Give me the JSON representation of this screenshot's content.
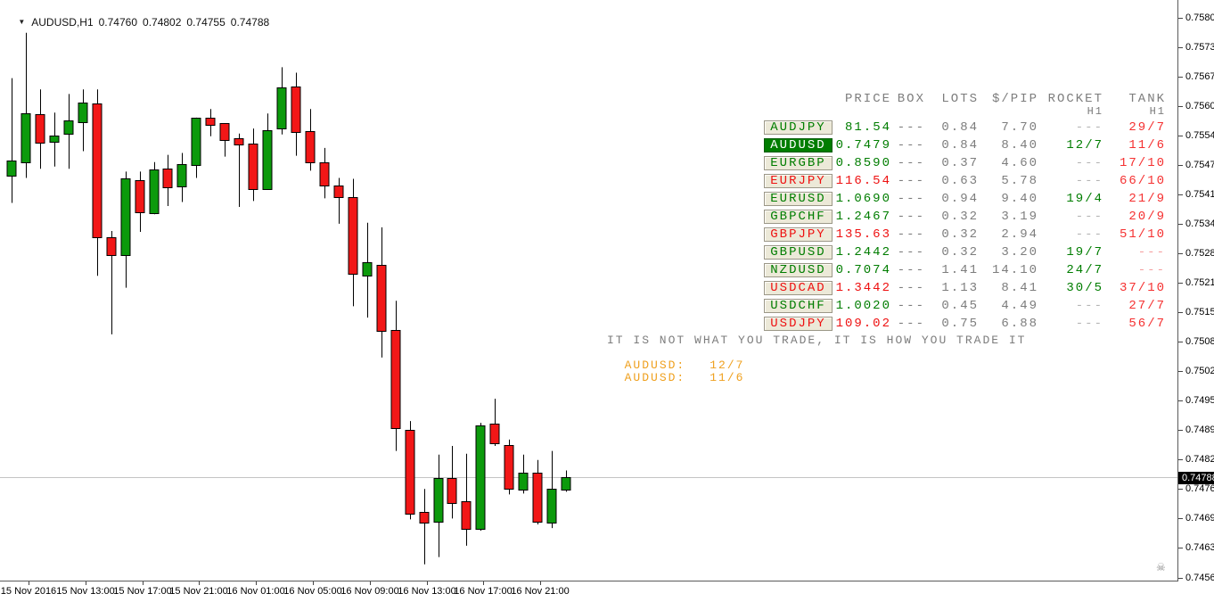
{
  "window": {
    "symbol_title": "AUDUSD,H1",
    "ohlc": {
      "open": "0.74760",
      "high": "0.74802",
      "low": "0.74755",
      "close": "0.74788"
    }
  },
  "icons": {
    "dropdown": "▼",
    "watermark": "☠"
  },
  "colors": {
    "bull": "#0c9a0c",
    "bear": "#f21717",
    "outline": "#000000",
    "price_line": "#c4c4c4",
    "axis_text": "#000000",
    "header_gray": "#7d7d7d",
    "dash_gray": "#b4b4b4",
    "green_text": "#007d00",
    "red_text": "#ee1111",
    "tank_red": "#f53030",
    "tank_dash": "#f5a0a0",
    "signal_orange": "#efa01e",
    "chip_face": "#ece9d8",
    "chip_selected_bg": "#007d00",
    "chip_selected_text": "#ffffff",
    "separator": "#5a5a5a"
  },
  "panel": {
    "columns": [
      "PRICE",
      "BOX",
      "LOTS",
      "$/PIP",
      "ROCKET",
      "TANK"
    ],
    "subheaders": {
      "rocket": "H1",
      "tank": "H1"
    },
    "rows": [
      {
        "pair": "AUDJPY",
        "trend": "g",
        "selected": false,
        "price": "81.54",
        "box": "---",
        "lots": "0.84",
        "pip": "7.70",
        "rocket": "---",
        "tank": "29/7"
      },
      {
        "pair": "AUDUSD",
        "trend": "g",
        "selected": true,
        "price": "0.7479",
        "box": "---",
        "lots": "0.84",
        "pip": "8.40",
        "rocket": "12/7",
        "tank": "11/6"
      },
      {
        "pair": "EURGBP",
        "trend": "g",
        "selected": false,
        "price": "0.8590",
        "box": "---",
        "lots": "0.37",
        "pip": "4.60",
        "rocket": "---",
        "tank": "17/10"
      },
      {
        "pair": "EURJPY",
        "trend": "r",
        "selected": false,
        "price": "116.54",
        "box": "---",
        "lots": "0.63",
        "pip": "5.78",
        "rocket": "---",
        "tank": "66/10"
      },
      {
        "pair": "EURUSD",
        "trend": "g",
        "selected": false,
        "price": "1.0690",
        "box": "---",
        "lots": "0.94",
        "pip": "9.40",
        "rocket": "19/4",
        "tank": "21/9"
      },
      {
        "pair": "GBPCHF",
        "trend": "g",
        "selected": false,
        "price": "1.2467",
        "box": "---",
        "lots": "0.32",
        "pip": "3.19",
        "rocket": "---",
        "tank": "20/9"
      },
      {
        "pair": "GBPJPY",
        "trend": "r",
        "selected": false,
        "price": "135.63",
        "box": "---",
        "lots": "0.32",
        "pip": "2.94",
        "rocket": "---",
        "tank": "51/10"
      },
      {
        "pair": "GBPUSD",
        "trend": "g",
        "selected": false,
        "price": "1.2442",
        "box": "---",
        "lots": "0.32",
        "pip": "3.20",
        "rocket": "19/7",
        "tank": "---"
      },
      {
        "pair": "NZDUSD",
        "trend": "g",
        "selected": false,
        "price": "0.7074",
        "box": "---",
        "lots": "1.41",
        "pip": "14.10",
        "rocket": "24/7",
        "tank": "---"
      },
      {
        "pair": "USDCAD",
        "trend": "r",
        "selected": false,
        "price": "1.3442",
        "box": "---",
        "lots": "1.13",
        "pip": "8.41",
        "rocket": "30/5",
        "tank": "37/10"
      },
      {
        "pair": "USDCHF",
        "trend": "g",
        "selected": false,
        "price": "1.0020",
        "box": "---",
        "lots": "0.45",
        "pip": "4.49",
        "rocket": "---",
        "tank": "27/7"
      },
      {
        "pair": "USDJPY",
        "trend": "r",
        "selected": false,
        "price": "109.02",
        "box": "---",
        "lots": "0.75",
        "pip": "6.88",
        "rocket": "---",
        "tank": "56/7"
      }
    ],
    "motto": "IT IS NOT WHAT YOU TRADE, IT IS HOW YOU TRADE IT",
    "signals": [
      {
        "label": "AUDUSD:",
        "value": "12/7"
      },
      {
        "label": "AUDUSD:",
        "value": "11/6"
      }
    ]
  },
  "chart_data": {
    "type": "candlestick",
    "symbol": "AUDUSD",
    "timeframe": "H1",
    "price_axis": {
      "min": 0.74565,
      "max": 0.758,
      "tick_step": 0.00065,
      "labels": [
        "0.75800",
        "0.75735",
        "0.75670",
        "0.75605",
        "0.75540",
        "0.75475",
        "0.75410",
        "0.75345",
        "0.75280",
        "0.75215",
        "0.75150",
        "0.75085",
        "0.75020",
        "0.74955",
        "0.74890",
        "0.74825",
        "0.74760",
        "0.74695",
        "0.74630",
        "0.74565"
      ],
      "current_price": "0.74788"
    },
    "time_axis": {
      "ticks": [
        {
          "index": 1,
          "label": "15 Nov 2016"
        },
        {
          "index": 5,
          "label": "15 Nov 13:00"
        },
        {
          "index": 9,
          "label": "15 Nov 17:00"
        },
        {
          "index": 13,
          "label": "15 Nov 21:00"
        },
        {
          "index": 17,
          "label": "16 Nov 01:00"
        },
        {
          "index": 21,
          "label": "16 Nov 05:00"
        },
        {
          "index": 25,
          "label": "16 Nov 09:00"
        },
        {
          "index": 29,
          "label": "16 Nov 13:00"
        },
        {
          "index": 33,
          "label": "16 Nov 17:00"
        },
        {
          "index": 37,
          "label": "16 Nov 21:00"
        }
      ]
    },
    "candles": [
      {
        "t": "15 Nov 08:00",
        "o": 0.75451,
        "h": 0.75667,
        "l": 0.75392,
        "c": 0.75486
      },
      {
        "t": "15 Nov 09:00",
        "o": 0.75482,
        "h": 0.75767,
        "l": 0.75447,
        "c": 0.75589
      },
      {
        "t": "15 Nov 10:00",
        "o": 0.75587,
        "h": 0.75642,
        "l": 0.75467,
        "c": 0.75525
      },
      {
        "t": "15 Nov 11:00",
        "o": 0.75527,
        "h": 0.75591,
        "l": 0.75472,
        "c": 0.75541
      },
      {
        "t": "15 Nov 12:00",
        "o": 0.75545,
        "h": 0.75632,
        "l": 0.75467,
        "c": 0.75574
      },
      {
        "t": "15 Nov 13:00",
        "o": 0.7557,
        "h": 0.75642,
        "l": 0.75506,
        "c": 0.75613
      },
      {
        "t": "15 Nov 14:00",
        "o": 0.75611,
        "h": 0.75642,
        "l": 0.75231,
        "c": 0.75316
      },
      {
        "t": "15 Nov 15:00",
        "o": 0.75316,
        "h": 0.7533,
        "l": 0.75102,
        "c": 0.75277
      },
      {
        "t": "15 Nov 16:00",
        "o": 0.75277,
        "h": 0.75461,
        "l": 0.75205,
        "c": 0.75447
      },
      {
        "t": "15 Nov 17:00",
        "o": 0.75443,
        "h": 0.75461,
        "l": 0.75328,
        "c": 0.75371
      },
      {
        "t": "15 Nov 18:00",
        "o": 0.75369,
        "h": 0.75482,
        "l": 0.75367,
        "c": 0.75465
      },
      {
        "t": "15 Nov 19:00",
        "o": 0.75467,
        "h": 0.75498,
        "l": 0.75385,
        "c": 0.75426
      },
      {
        "t": "15 Nov 20:00",
        "o": 0.75428,
        "h": 0.75502,
        "l": 0.75394,
        "c": 0.75478
      },
      {
        "t": "15 Nov 21:00",
        "o": 0.75476,
        "h": 0.7558,
        "l": 0.75447,
        "c": 0.7558
      },
      {
        "t": "15 Nov 22:00",
        "o": 0.7558,
        "h": 0.75599,
        "l": 0.75539,
        "c": 0.75564
      },
      {
        "t": "15 Nov 23:00",
        "o": 0.75568,
        "h": 0.75568,
        "l": 0.75494,
        "c": 0.75531
      },
      {
        "t": "16 Nov 00:00",
        "o": 0.75535,
        "h": 0.75545,
        "l": 0.75383,
        "c": 0.75521
      },
      {
        "t": "16 Nov 01:00",
        "o": 0.75523,
        "h": 0.75556,
        "l": 0.75396,
        "c": 0.75422
      },
      {
        "t": "16 Nov 02:00",
        "o": 0.75422,
        "h": 0.75589,
        "l": 0.75422,
        "c": 0.75552
      },
      {
        "t": "16 Nov 03:00",
        "o": 0.75556,
        "h": 0.75691,
        "l": 0.75543,
        "c": 0.75646
      },
      {
        "t": "16 Nov 04:00",
        "o": 0.75648,
        "h": 0.75679,
        "l": 0.75496,
        "c": 0.75548
      },
      {
        "t": "16 Nov 05:00",
        "o": 0.7555,
        "h": 0.75599,
        "l": 0.75463,
        "c": 0.75482
      },
      {
        "t": "16 Nov 06:00",
        "o": 0.75482,
        "h": 0.75513,
        "l": 0.75402,
        "c": 0.75431
      },
      {
        "t": "16 Nov 07:00",
        "o": 0.7543,
        "h": 0.75447,
        "l": 0.75346,
        "c": 0.75404
      },
      {
        "t": "16 Nov 08:00",
        "o": 0.75404,
        "h": 0.75445,
        "l": 0.75164,
        "c": 0.75235
      },
      {
        "t": "16 Nov 09:00",
        "o": 0.75231,
        "h": 0.75348,
        "l": 0.75139,
        "c": 0.75262
      },
      {
        "t": "16 Nov 10:00",
        "o": 0.75256,
        "h": 0.75338,
        "l": 0.75051,
        "c": 0.7511
      },
      {
        "t": "16 Nov 11:00",
        "o": 0.75112,
        "h": 0.75176,
        "l": 0.74845,
        "c": 0.74895
      },
      {
        "t": "16 Nov 12:00",
        "o": 0.74891,
        "h": 0.74911,
        "l": 0.74694,
        "c": 0.74706
      },
      {
        "t": "16 Nov 13:00",
        "o": 0.7471,
        "h": 0.74761,
        "l": 0.74595,
        "c": 0.74687
      },
      {
        "t": "16 Nov 14:00",
        "o": 0.74689,
        "h": 0.74837,
        "l": 0.74611,
        "c": 0.74786
      },
      {
        "t": "16 Nov 15:00",
        "o": 0.74786,
        "h": 0.74856,
        "l": 0.74696,
        "c": 0.74731
      },
      {
        "t": "16 Nov 16:00",
        "o": 0.74735,
        "h": 0.74839,
        "l": 0.74636,
        "c": 0.74673
      },
      {
        "t": "16 Nov 17:00",
        "o": 0.74673,
        "h": 0.74907,
        "l": 0.74669,
        "c": 0.74901
      },
      {
        "t": "16 Nov 18:00",
        "o": 0.74905,
        "h": 0.7496,
        "l": 0.74856,
        "c": 0.74862
      },
      {
        "t": "16 Nov 19:00",
        "o": 0.74858,
        "h": 0.7487,
        "l": 0.74749,
        "c": 0.74761
      },
      {
        "t": "16 Nov 20:00",
        "o": 0.74759,
        "h": 0.74837,
        "l": 0.74751,
        "c": 0.74798
      },
      {
        "t": "16 Nov 21:00",
        "o": 0.74798,
        "h": 0.74825,
        "l": 0.74683,
        "c": 0.74689
      },
      {
        "t": "16 Nov 22:00",
        "o": 0.74687,
        "h": 0.74845,
        "l": 0.74675,
        "c": 0.74761
      },
      {
        "t": "16 Nov 23:00",
        "o": 0.7476,
        "h": 0.74802,
        "l": 0.74755,
        "c": 0.74788
      }
    ]
  }
}
